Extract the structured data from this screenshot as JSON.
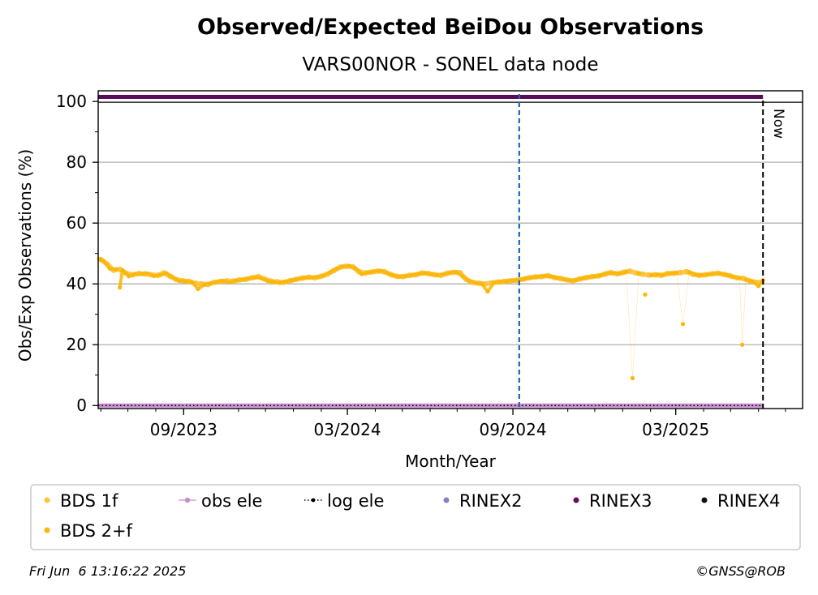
{
  "chart_data": {
    "type": "scatter",
    "title": "Observed/Expected BeiDou Observations",
    "subtitle": "VARS00NOR - SONEL data node",
    "xlabel": "Month/Year",
    "ylabel": "Obs/Exp Observations (%)",
    "x_range": [
      "2023-05-29",
      "2025-07-20"
    ],
    "ylim": [
      -1,
      103.5
    ],
    "y_ticks": [
      0,
      20,
      40,
      60,
      80,
      100
    ],
    "x_ticks": [
      {
        "date": "2023-09-01",
        "label": "09/2023"
      },
      {
        "date": "2024-03-01",
        "label": "03/2024"
      },
      {
        "date": "2024-09-01",
        "label": "09/2024"
      },
      {
        "date": "2025-03-01",
        "label": "03/2025"
      }
    ],
    "grid": true,
    "legend_placement": "bottom",
    "series": [
      {
        "name": "BDS 1f",
        "color": "#fcc43c",
        "points": [
          [
            "2023-06-01",
            48.0
          ],
          [
            "2023-06-08",
            46.5
          ],
          [
            "2023-06-15",
            44.5
          ],
          [
            "2023-06-22",
            44.8
          ],
          [
            "2023-06-29",
            43.5
          ],
          [
            "2023-07-06",
            43.0
          ],
          [
            "2023-07-13",
            43.4
          ],
          [
            "2023-07-20",
            43.3
          ],
          [
            "2023-07-27",
            43.0
          ],
          [
            "2023-08-03",
            42.8
          ],
          [
            "2023-08-10",
            43.6
          ],
          [
            "2023-08-17",
            42.5
          ],
          [
            "2023-08-24",
            41.4
          ],
          [
            "2023-08-31",
            41.0
          ],
          [
            "2023-09-07",
            40.8
          ],
          [
            "2023-09-14",
            40.2
          ],
          [
            "2023-09-21",
            40.0
          ],
          [
            "2023-09-28",
            39.8
          ],
          [
            "2023-10-05",
            40.5
          ],
          [
            "2023-10-12",
            40.8
          ],
          [
            "2023-10-19",
            41.0
          ],
          [
            "2023-10-26",
            40.9
          ],
          [
            "2023-11-02",
            41.3
          ],
          [
            "2023-11-09",
            41.5
          ],
          [
            "2023-11-16",
            42.0
          ],
          [
            "2023-11-23",
            42.4
          ],
          [
            "2023-11-30",
            41.6
          ],
          [
            "2023-12-07",
            40.9
          ],
          [
            "2023-12-14",
            40.7
          ],
          [
            "2023-12-21",
            40.5
          ],
          [
            "2023-12-28",
            41.0
          ],
          [
            "2024-01-04",
            41.5
          ],
          [
            "2024-01-11",
            41.9
          ],
          [
            "2024-01-18",
            42.2
          ],
          [
            "2024-01-25",
            42.0
          ],
          [
            "2024-02-01",
            42.5
          ],
          [
            "2024-02-08",
            43.2
          ],
          [
            "2024-02-15",
            44.4
          ],
          [
            "2024-02-22",
            45.5
          ],
          [
            "2024-02-29",
            45.8
          ],
          [
            "2024-03-07",
            45.6
          ],
          [
            "2024-03-14",
            44.0
          ],
          [
            "2024-03-21",
            43.6
          ],
          [
            "2024-03-28",
            43.9
          ],
          [
            "2024-04-04",
            44.2
          ],
          [
            "2024-04-11",
            44.0
          ],
          [
            "2024-04-18",
            43.1
          ],
          [
            "2024-04-25",
            42.5
          ],
          [
            "2024-05-02",
            42.4
          ],
          [
            "2024-05-09",
            42.8
          ],
          [
            "2024-05-16",
            43.0
          ],
          [
            "2024-05-23",
            43.6
          ],
          [
            "2024-05-30",
            43.4
          ],
          [
            "2024-06-06",
            43.0
          ],
          [
            "2024-06-13",
            42.8
          ],
          [
            "2024-06-20",
            43.5
          ],
          [
            "2024-06-27",
            43.8
          ],
          [
            "2024-07-04",
            43.7
          ],
          [
            "2024-07-11",
            41.5
          ],
          [
            "2024-07-18",
            40.5
          ],
          [
            "2024-07-25",
            40.2
          ],
          [
            "2024-08-01",
            40.0
          ],
          [
            "2024-08-08",
            40.3
          ],
          [
            "2024-08-15",
            40.6
          ],
          [
            "2024-08-22",
            40.8
          ],
          [
            "2024-08-29",
            41.0
          ],
          [
            "2024-09-05",
            41.2
          ],
          [
            "2024-09-12",
            41.5
          ],
          [
            "2024-09-19",
            42.0
          ],
          [
            "2024-09-26",
            42.3
          ],
          [
            "2024-10-03",
            42.4
          ],
          [
            "2024-10-10",
            42.7
          ],
          [
            "2024-10-17",
            42.1
          ],
          [
            "2024-10-24",
            41.8
          ],
          [
            "2024-10-31",
            41.3
          ],
          [
            "2024-11-07",
            41.0
          ],
          [
            "2024-11-14",
            41.6
          ],
          [
            "2024-11-21",
            42.0
          ],
          [
            "2024-11-28",
            42.4
          ],
          [
            "2024-12-05",
            42.6
          ],
          [
            "2024-12-12",
            43.2
          ],
          [
            "2024-12-19",
            43.7
          ],
          [
            "2024-12-26",
            43.3
          ],
          [
            "2025-01-02",
            43.8
          ],
          [
            "2025-01-09",
            44.2
          ],
          [
            "2025-01-16",
            43.6
          ],
          [
            "2025-01-23",
            43.2
          ],
          [
            "2025-01-30",
            42.9
          ],
          [
            "2025-02-06",
            43.0
          ],
          [
            "2025-02-13",
            42.8
          ],
          [
            "2025-02-20",
            43.4
          ],
          [
            "2025-02-27",
            43.5
          ],
          [
            "2025-03-06",
            43.7
          ],
          [
            "2025-03-13",
            44.0
          ],
          [
            "2025-03-20",
            43.2
          ],
          [
            "2025-03-27",
            42.8
          ],
          [
            "2025-04-03",
            43.0
          ],
          [
            "2025-04-10",
            43.3
          ],
          [
            "2025-04-17",
            43.5
          ],
          [
            "2025-04-24",
            43.1
          ],
          [
            "2025-05-01",
            42.6
          ],
          [
            "2025-05-08",
            42.0
          ],
          [
            "2025-05-15",
            41.8
          ],
          [
            "2025-05-22",
            41.0
          ],
          [
            "2025-05-29",
            40.5
          ],
          [
            "2025-06-05",
            40.6
          ]
        ]
      },
      {
        "name": "BDS 2+f",
        "color": "#fbb60a",
        "points": [
          [
            "2023-05-30",
            48.2
          ],
          [
            "2023-06-04",
            47.5
          ],
          [
            "2023-06-11",
            45.0
          ],
          [
            "2023-06-18",
            44.8
          ],
          [
            "2023-06-22",
            38.8
          ],
          [
            "2023-06-25",
            44.5
          ],
          [
            "2023-07-02",
            42.5
          ],
          [
            "2023-07-09",
            43.2
          ],
          [
            "2023-07-16",
            43.3
          ],
          [
            "2023-07-23",
            43.4
          ],
          [
            "2023-07-30",
            42.6
          ],
          [
            "2023-08-06",
            42.9
          ],
          [
            "2023-08-13",
            43.5
          ],
          [
            "2023-08-20",
            42.2
          ],
          [
            "2023-08-27",
            41.0
          ],
          [
            "2023-09-03",
            40.9
          ],
          [
            "2023-09-10",
            40.6
          ],
          [
            "2023-09-17",
            38.3
          ],
          [
            "2023-09-24",
            39.7
          ],
          [
            "2023-10-01",
            40.2
          ],
          [
            "2023-10-08",
            40.6
          ],
          [
            "2023-10-15",
            41.0
          ],
          [
            "2023-10-22",
            40.5
          ],
          [
            "2023-10-29",
            41.1
          ],
          [
            "2023-11-05",
            41.4
          ],
          [
            "2023-11-12",
            41.8
          ],
          [
            "2023-11-19",
            42.1
          ],
          [
            "2023-11-26",
            41.9
          ],
          [
            "2023-12-03",
            41.0
          ],
          [
            "2023-12-10",
            40.6
          ],
          [
            "2023-12-17",
            40.3
          ],
          [
            "2023-12-24",
            40.8
          ],
          [
            "2023-12-31",
            41.2
          ],
          [
            "2024-01-07",
            41.7
          ],
          [
            "2024-01-14",
            42.0
          ],
          [
            "2024-01-21",
            42.1
          ],
          [
            "2024-01-28",
            42.3
          ],
          [
            "2024-02-04",
            42.8
          ],
          [
            "2024-02-11",
            43.9
          ],
          [
            "2024-02-18",
            45.0
          ],
          [
            "2024-02-25",
            45.7
          ],
          [
            "2024-03-03",
            45.9
          ],
          [
            "2024-03-10",
            45.1
          ],
          [
            "2024-03-17",
            43.2
          ],
          [
            "2024-03-24",
            43.8
          ],
          [
            "2024-03-31",
            44.1
          ],
          [
            "2024-04-07",
            44.3
          ],
          [
            "2024-04-14",
            43.6
          ],
          [
            "2024-04-21",
            42.8
          ],
          [
            "2024-04-28",
            42.3
          ],
          [
            "2024-05-05",
            42.6
          ],
          [
            "2024-05-12",
            42.9
          ],
          [
            "2024-05-19",
            43.3
          ],
          [
            "2024-05-26",
            43.5
          ],
          [
            "2024-06-02",
            43.2
          ],
          [
            "2024-06-09",
            42.9
          ],
          [
            "2024-06-16",
            43.2
          ],
          [
            "2024-06-23",
            43.7
          ],
          [
            "2024-06-30",
            43.9
          ],
          [
            "2024-07-07",
            42.5
          ],
          [
            "2024-07-14",
            41.0
          ],
          [
            "2024-07-21",
            40.3
          ],
          [
            "2024-07-28",
            40.1
          ],
          [
            "2024-08-04",
            37.5
          ],
          [
            "2024-08-11",
            40.4
          ],
          [
            "2024-08-18",
            40.7
          ],
          [
            "2024-08-25",
            40.9
          ],
          [
            "2024-09-01",
            41.1
          ],
          [
            "2024-09-08",
            41.3
          ],
          [
            "2024-09-15",
            41.8
          ],
          [
            "2024-09-22",
            42.1
          ],
          [
            "2024-09-29",
            42.4
          ],
          [
            "2024-10-06",
            42.6
          ],
          [
            "2024-10-13",
            42.5
          ],
          [
            "2024-10-20",
            41.9
          ],
          [
            "2024-10-27",
            41.5
          ],
          [
            "2024-11-03",
            41.1
          ],
          [
            "2024-11-10",
            41.3
          ],
          [
            "2024-11-17",
            41.8
          ],
          [
            "2024-11-24",
            42.2
          ],
          [
            "2024-12-01",
            42.5
          ],
          [
            "2024-12-08",
            42.9
          ],
          [
            "2024-12-15",
            43.5
          ],
          [
            "2024-12-22",
            43.5
          ],
          [
            "2024-12-29",
            43.4
          ],
          [
            "2025-01-05",
            44.0
          ],
          [
            "2025-01-12",
            9.0
          ],
          [
            "2025-01-19",
            43.4
          ],
          [
            "2025-01-26",
            36.5
          ],
          [
            "2025-02-02",
            42.9
          ],
          [
            "2025-02-09",
            43.1
          ],
          [
            "2025-02-16",
            43.0
          ],
          [
            "2025-02-23",
            43.5
          ],
          [
            "2025-03-02",
            43.6
          ],
          [
            "2025-03-09",
            26.8
          ],
          [
            "2025-03-16",
            43.9
          ],
          [
            "2025-03-23",
            43.0
          ],
          [
            "2025-03-30",
            42.9
          ],
          [
            "2025-04-06",
            43.1
          ],
          [
            "2025-04-13",
            43.4
          ],
          [
            "2025-04-20",
            43.3
          ],
          [
            "2025-04-27",
            42.9
          ],
          [
            "2025-05-04",
            42.3
          ],
          [
            "2025-05-11",
            41.9
          ],
          [
            "2025-05-14",
            20.0
          ],
          [
            "2025-05-18",
            41.4
          ],
          [
            "2025-05-25",
            40.8
          ],
          [
            "2025-06-01",
            39.3
          ],
          [
            "2025-06-06",
            41.2
          ]
        ]
      }
    ],
    "rinex3": {
      "y": 101.5,
      "from": "2023-05-29",
      "to": "2025-06-06",
      "color": "#5a0a5a"
    },
    "obs_ele": {
      "y": 0,
      "color": "#c88ccf"
    },
    "log_ele": {
      "y": 0
    },
    "event_line": {
      "date": "2024-09-08",
      "color": "#1f63b0"
    },
    "now_line": {
      "date": "2025-06-06",
      "label": "Now"
    }
  },
  "legend": {
    "items": [
      {
        "label": "BDS 1f",
        "marker": "dot",
        "color": "#fcc43c"
      },
      {
        "label": "obs ele",
        "marker": "line-dot",
        "color": "#c88ccf"
      },
      {
        "label": "log ele",
        "marker": "dotted-dot",
        "color": "#000000"
      },
      {
        "label": "RINEX2",
        "marker": "dot",
        "color": "#8a7fc2"
      },
      {
        "label": "RINEX3",
        "marker": "dot",
        "color": "#6b0a5f"
      },
      {
        "label": "RINEX4",
        "marker": "dot",
        "color": "#1a0a1a"
      },
      {
        "label": "BDS 2+f",
        "marker": "dot",
        "color": "#fbb60a"
      }
    ]
  },
  "footer": {
    "timestamp": "Fri Jun  6 13:16:22 2025",
    "credit": "©GNSS@ROB"
  }
}
